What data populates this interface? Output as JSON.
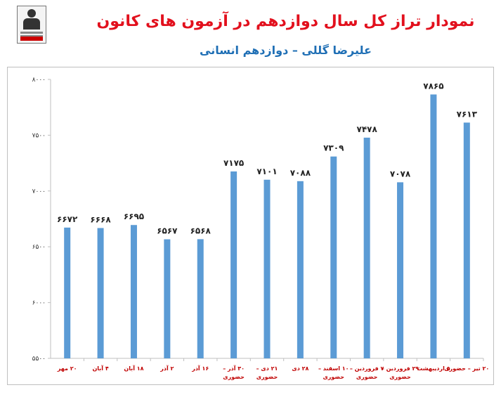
{
  "header": {
    "title": "نمودار تراز کل سال دوازدهم در آزمون های کانون",
    "subtitle": "علیرضا گللی – دوازدهم انسانی"
  },
  "logo": {
    "icon": "student-logo-icon"
  },
  "colors": {
    "bar": "#5b9bd5",
    "title": "#e2101d",
    "subtitle": "#1f6fb5",
    "category": "#c00000"
  },
  "chart_data": {
    "type": "bar",
    "title": "نمودار تراز کل سال دوازدهم در آزمون های کانون",
    "subtitle": "علیرضا گللی – دوازدهم انسانی",
    "categories": [
      [
        "۲۰ مهر"
      ],
      [
        "۴ آبان"
      ],
      [
        "۱۸ آبان"
      ],
      [
        "۲ آذر"
      ],
      [
        "۱۶ آذر"
      ],
      [
        "۳۰ آذر –",
        "حضوری"
      ],
      [
        "۲۱ دی –",
        "حضوری"
      ],
      [
        "۲۸ دی"
      ],
      [
        "۱۰ اسفند –",
        "حضوری"
      ],
      [
        "۷ فروردین –",
        "حضوری"
      ],
      [
        "۲۹ فروردین –",
        "حضوری"
      ],
      [
        "۵ اردیبهشت"
      ],
      [
        "۲۰ تیر – حضوری"
      ]
    ],
    "values": [
      6672,
      6668,
      6695,
      6567,
      6568,
      7175,
      7101,
      7088,
      7309,
      7478,
      7078,
      7865,
      7613
    ],
    "value_labels": [
      "۶۶۷۲",
      "۶۶۶۸",
      "۶۶۹۵",
      "۶۵۶۷",
      "۶۵۶۸",
      "۷۱۷۵",
      "۷۱۰۱",
      "۷۰۸۸",
      "۷۳۰۹",
      "۷۴۷۸",
      "۷۰۷۸",
      "۷۸۶۵",
      "۷۶۱۳"
    ],
    "xlabel": "",
    "ylabel": "",
    "ylim": [
      5500,
      8000
    ],
    "yticks": [
      5500,
      6000,
      6500,
      7000,
      7500,
      8000
    ],
    "ytick_labels": [
      "۵۵۰۰",
      "۶۰۰۰",
      "۶۵۰۰",
      "۷۰۰۰",
      "۷۵۰۰",
      "۸۰۰۰"
    ],
    "grid": false,
    "legend": "none"
  }
}
